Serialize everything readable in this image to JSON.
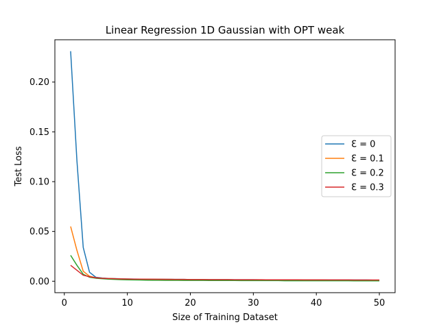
{
  "chart_data": {
    "type": "line",
    "title": "Linear Regression 1D Gaussian with OPT weak",
    "xlabel": "Size of Training Dataset",
    "ylabel": "Test Loss",
    "xlim": [
      -1.5,
      52.5
    ],
    "ylim": [
      -0.0115,
      0.2425
    ],
    "xticks": [
      0,
      10,
      20,
      30,
      40,
      50
    ],
    "xtick_labels": [
      "0",
      "10",
      "20",
      "30",
      "40",
      "50"
    ],
    "yticks": [
      0.0,
      0.05,
      0.1,
      0.15,
      0.2
    ],
    "ytick_labels": [
      "0.00",
      "0.05",
      "0.10",
      "0.15",
      "0.20"
    ],
    "legend_position": "center-right",
    "x": [
      1,
      2,
      3,
      4,
      5,
      6,
      7,
      8,
      9,
      10,
      11,
      12,
      13,
      14,
      15,
      16,
      17,
      18,
      19,
      20,
      21,
      22,
      23,
      24,
      25,
      26,
      27,
      28,
      29,
      30,
      31,
      32,
      33,
      34,
      35,
      36,
      37,
      38,
      39,
      40,
      41,
      42,
      43,
      44,
      45,
      46,
      47,
      48,
      49,
      50
    ],
    "series": [
      {
        "name": "Ɛ = 0",
        "color": "#1f77b4",
        "values": [
          0.231,
          0.121,
          0.034,
          0.009,
          0.004,
          0.0032,
          0.0028,
          0.0026,
          0.0024,
          0.0023,
          0.0022,
          0.0021,
          0.0021,
          0.002,
          0.002,
          0.0019,
          0.0019,
          0.0018,
          0.0018,
          0.0017,
          0.0017,
          0.0017,
          0.0016,
          0.0016,
          0.0016,
          0.0016,
          0.0015,
          0.0015,
          0.0015,
          0.0015,
          0.0014,
          0.0014,
          0.0014,
          0.0014,
          0.0014,
          0.0013,
          0.0013,
          0.0013,
          0.0013,
          0.0013,
          0.0013,
          0.0012,
          0.0012,
          0.0012,
          0.0012,
          0.0012,
          0.0012,
          0.0012,
          0.0011,
          0.0011
        ]
      },
      {
        "name": "Ɛ = 0.1",
        "color": "#ff7f0e",
        "values": [
          0.055,
          0.031,
          0.01,
          0.005,
          0.0035,
          0.003,
          0.0027,
          0.0025,
          0.0023,
          0.0022,
          0.0021,
          0.002,
          0.002,
          0.0019,
          0.0019,
          0.0018,
          0.0018,
          0.0017,
          0.0017,
          0.0016,
          0.0016,
          0.0016,
          0.0015,
          0.0015,
          0.0015,
          0.0015,
          0.0014,
          0.0014,
          0.0014,
          0.0014,
          0.0013,
          0.0013,
          0.0013,
          0.0013,
          0.0013,
          0.0012,
          0.0012,
          0.0012,
          0.0012,
          0.0012,
          0.0012,
          0.0011,
          0.0011,
          0.0011,
          0.0011,
          0.0011,
          0.0011,
          0.0011,
          0.001,
          0.001
        ]
      },
      {
        "name": "Ɛ = 0.2",
        "color": "#2ca02c",
        "values": [
          0.026,
          0.016,
          0.007,
          0.004,
          0.003,
          0.0025,
          0.0021,
          0.0018,
          0.0016,
          0.0014,
          0.0013,
          0.0012,
          0.0011,
          0.001,
          0.001,
          0.0009,
          0.0009,
          0.0009,
          0.0008,
          0.0008,
          0.0008,
          0.0008,
          0.0007,
          0.0007,
          0.0007,
          0.0007,
          0.0007,
          0.0006,
          0.0006,
          0.0006,
          0.0006,
          0.0006,
          0.0006,
          0.0006,
          0.0005,
          0.0005,
          0.0005,
          0.0005,
          0.0005,
          0.0005,
          0.0005,
          0.0005,
          0.0005,
          0.0005,
          0.0005,
          0.0004,
          0.0004,
          0.0004,
          0.0004,
          0.0004
        ]
      },
      {
        "name": "Ɛ = 0.3",
        "color": "#d62728",
        "values": [
          0.016,
          0.011,
          0.006,
          0.0045,
          0.0035,
          0.003,
          0.0027,
          0.0025,
          0.0023,
          0.0022,
          0.0021,
          0.0021,
          0.002,
          0.002,
          0.0019,
          0.0019,
          0.0018,
          0.0018,
          0.0018,
          0.0017,
          0.0017,
          0.0017,
          0.0016,
          0.0016,
          0.0016,
          0.0016,
          0.0015,
          0.0015,
          0.0015,
          0.0015,
          0.0015,
          0.0014,
          0.0014,
          0.0014,
          0.0014,
          0.0014,
          0.0014,
          0.0013,
          0.0013,
          0.0013,
          0.0013,
          0.0013,
          0.0013,
          0.0013,
          0.0013,
          0.0012,
          0.0012,
          0.0012,
          0.0012,
          0.0012
        ]
      }
    ]
  }
}
